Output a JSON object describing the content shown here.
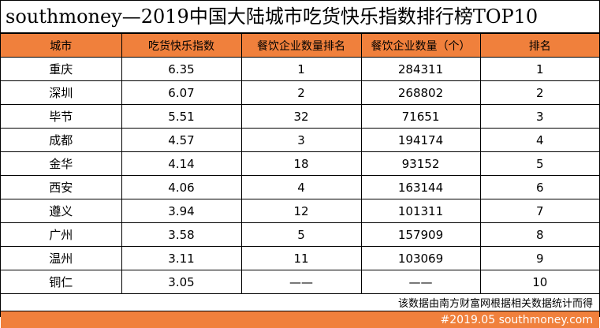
{
  "title": "southmoney—2019中国大陆城市吃货快乐指数排行榜TOP10",
  "header_color": "#f0803c",
  "columns": [
    "城市",
    "吃货快乐指数",
    "餐饮企业数量排名",
    "餐饮企业数量（个）",
    "排名"
  ],
  "rows": [
    [
      "重庆",
      "6.35",
      "1",
      "284311",
      "1"
    ],
    [
      "深圳",
      "6.07",
      "2",
      "268802",
      "2"
    ],
    [
      "毕节",
      "5.51",
      "32",
      "71651",
      "3"
    ],
    [
      "成都",
      "4.57",
      "3",
      "194174",
      "4"
    ],
    [
      "金华",
      "4.14",
      "18",
      "93152",
      "5"
    ],
    [
      "西安",
      "4.06",
      "4",
      "163144",
      "6"
    ],
    [
      "遵义",
      "3.94",
      "12",
      "101311",
      "7"
    ],
    [
      "广州",
      "3.58",
      "5",
      "157909",
      "8"
    ],
    [
      "温州",
      "3.11",
      "11",
      "103069",
      "9"
    ],
    [
      "铜仁",
      "3.05",
      "——",
      "——",
      "10"
    ]
  ],
  "note": "该数据由南方财富网根据相关数据统计而得",
  "footer": "#2019.05 southmoney.com"
}
